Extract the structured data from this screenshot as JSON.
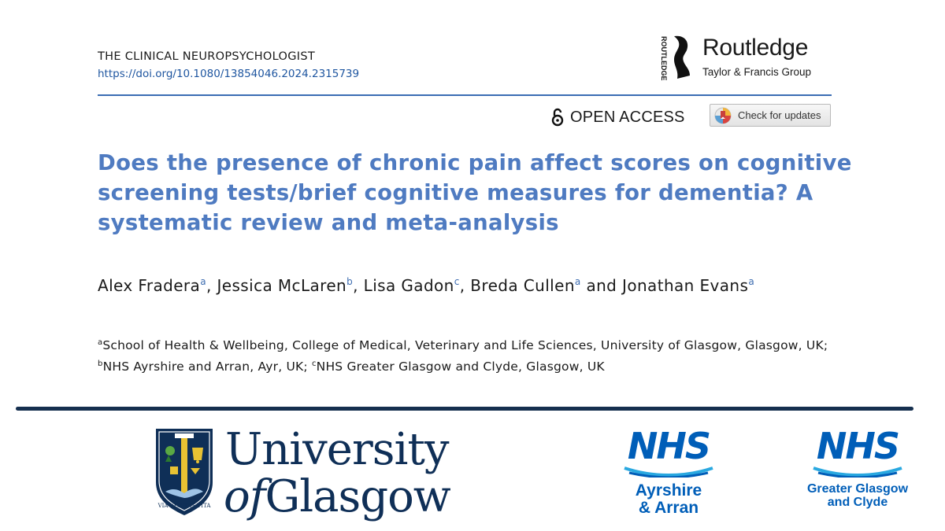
{
  "journal": {
    "name": "THE CLINICAL NEUROPSYCHOLOGIST",
    "doi": "https://doi.org/10.1080/13854046.2024.2315739"
  },
  "publisher": {
    "name": "Routledge",
    "group": "Taylor & Francis Group",
    "vertical_mark": "ROUTLEDGE"
  },
  "access": {
    "label": "OPEN ACCESS",
    "check_updates": "Check for updates"
  },
  "article": {
    "title": "Does the presence of chronic pain affect scores on cognitive screening tests/brief cognitive measures for dementia? A systematic review and meta-analysis",
    "authors": [
      {
        "name": "Alex Fradera",
        "aff": "a",
        "sep": ", "
      },
      {
        "name": "Jessica McLaren",
        "aff": "b",
        "sep": ", "
      },
      {
        "name": "Lisa Gadon",
        "aff": "c",
        "sep": ", "
      },
      {
        "name": "Breda Cullen",
        "aff": "a",
        "sep": " and "
      },
      {
        "name": "Jonathan Evans",
        "aff": "a",
        "sep": ""
      }
    ],
    "affiliations": [
      {
        "mark": "a",
        "text": "School of Health & Wellbeing, College of Medical, Veterinary and Life Sciences, University of Glasgow, Glasgow, UK",
        "sep": "; "
      },
      {
        "mark": "b",
        "text": "NHS Ayrshire and Arran, Ayr, UK",
        "sep": "; "
      },
      {
        "mark": "c",
        "text": "NHS Greater Glasgow and Clyde, Glasgow, UK",
        "sep": ""
      }
    ]
  },
  "logos": {
    "uog": {
      "line1": "University",
      "of": "of",
      "glasgow": "Glasgow",
      "motto": "VIA VERITAS VITA"
    },
    "nhs_ayrshire": {
      "mark": "NHS",
      "line1": "Ayrshire",
      "line2": "& Arran"
    },
    "nhs_ggc": {
      "mark": "NHS",
      "line1": "Greater Glasgow",
      "line2": "and Clyde"
    }
  },
  "colors": {
    "title": "#4f7bc1",
    "link": "#1f56a0",
    "divider": "#16304f",
    "nhs_blue": "#005eb8",
    "uog_navy": "#0f2f57"
  }
}
